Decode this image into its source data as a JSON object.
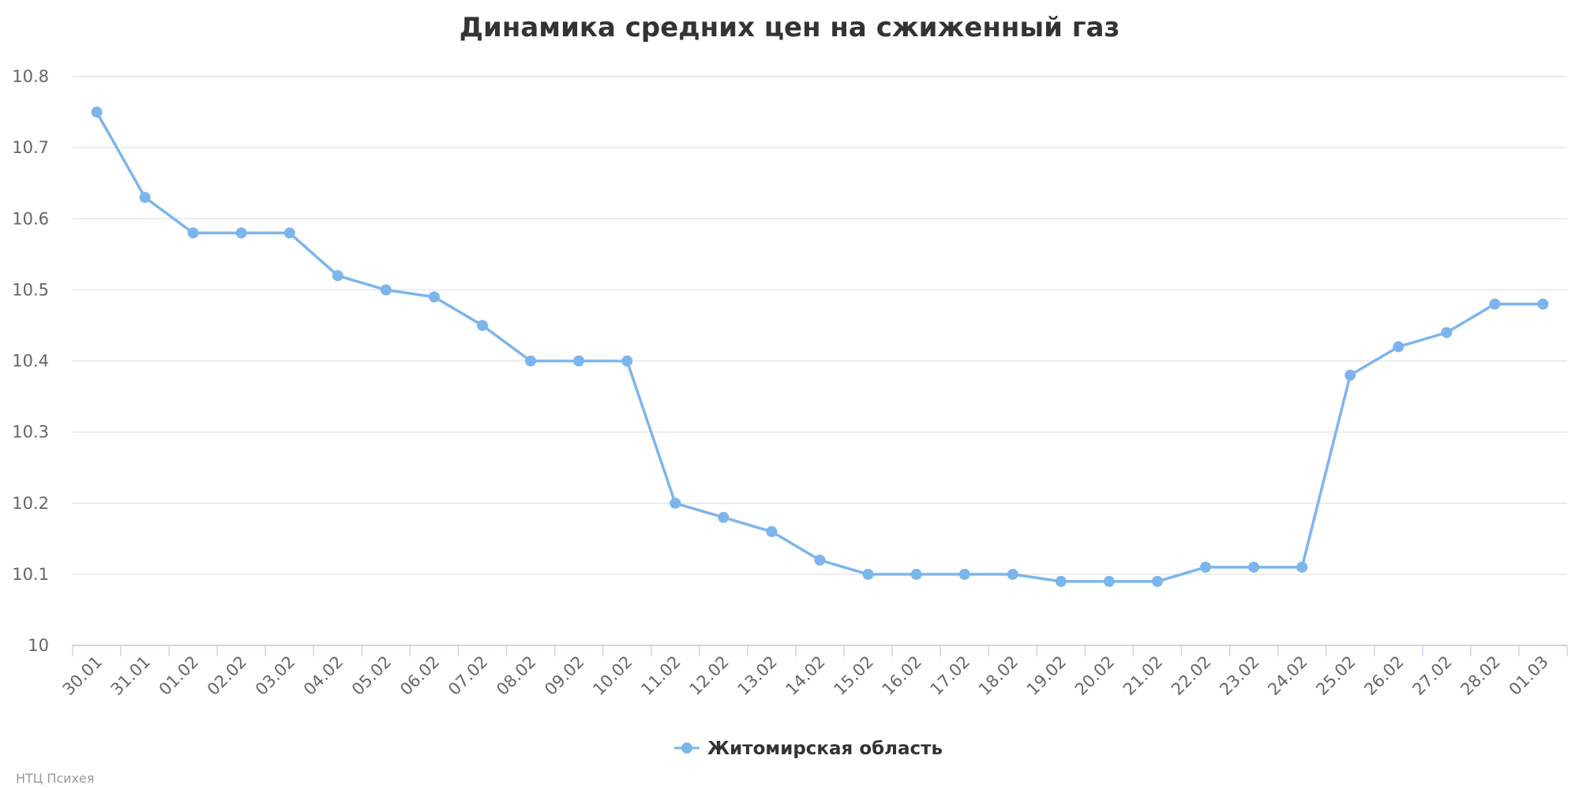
{
  "chart_data": {
    "type": "line",
    "title": "Динамика средних цен на сжиженный газ",
    "categories": [
      "30.01",
      "31.01",
      "01.02",
      "02.02",
      "03.02",
      "04.02",
      "05.02",
      "06.02",
      "07.02",
      "08.02",
      "09.02",
      "10.02",
      "11.02",
      "12.02",
      "13.02",
      "14.02",
      "15.02",
      "16.02",
      "17.02",
      "18.02",
      "19.02",
      "20.02",
      "21.02",
      "22.02",
      "23.02",
      "24.02",
      "25.02",
      "26.02",
      "27.02",
      "28.02",
      "01.03"
    ],
    "series": [
      {
        "name": "Житомирская область",
        "color": "#7cb5ec",
        "values": [
          10.75,
          10.63,
          10.58,
          10.58,
          10.58,
          10.52,
          10.5,
          10.49,
          10.45,
          10.4,
          10.4,
          10.4,
          10.2,
          10.18,
          10.16,
          10.12,
          10.1,
          10.1,
          10.1,
          10.1,
          10.09,
          10.09,
          10.09,
          10.11,
          10.11,
          10.11,
          10.38,
          10.42,
          10.44,
          10.48,
          10.48
        ]
      }
    ],
    "y_ticks": [
      "10",
      "10.1",
      "10.2",
      "10.3",
      "10.4",
      "10.5",
      "10.6",
      "10.7",
      "10.8"
    ],
    "ylim": [
      10,
      10.8
    ],
    "grid": true,
    "legend_position": "bottom-center",
    "xlabel": "",
    "ylabel": ""
  },
  "credits": "НТЦ Психея",
  "colors": {
    "grid": "#e6e6e6",
    "axis": "#ccd6eb",
    "series": "#7cb5ec"
  }
}
